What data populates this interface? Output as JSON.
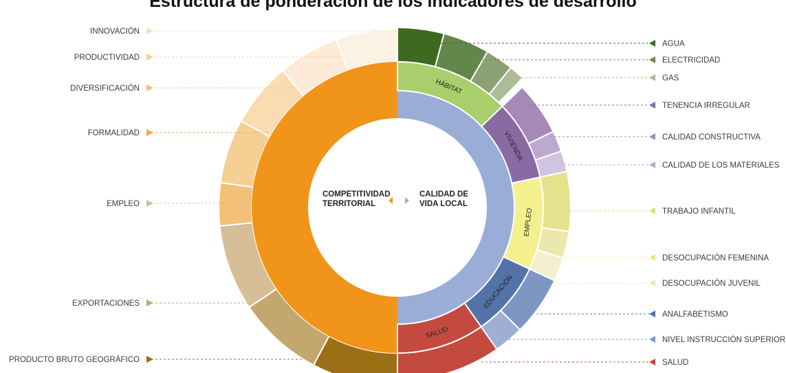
{
  "title": "Estructura de ponderación de los indicadores de desarrollo",
  "center_left": [
    "COMPETITIVIDAD",
    "TERRITORIAL"
  ],
  "center_right": [
    "CALIDAD DE",
    "VIDA LOCAL"
  ],
  "inner_groups": [
    {
      "name": "COMPETITIVIDAD TERRITORIAL",
      "label": "",
      "start": 180,
      "end": 360,
      "color": "#F0951A"
    },
    {
      "name": "HÁBITAT",
      "label": "HÁBITAT",
      "start": 0,
      "end": 46,
      "color": "#A9CF6D"
    },
    {
      "name": "VIVIENDA",
      "label": "VIVIENDA",
      "start": 46,
      "end": 78,
      "color": "#8A6AA3"
    },
    {
      "name": "EMPLEO",
      "label": "EMPLEO",
      "start": 78,
      "end": 115,
      "color": "#F5F08E"
    },
    {
      "name": "EDUCACIÓN",
      "label": "EDUCACIÓN",
      "start": 115,
      "end": 145,
      "color": "#5273A8"
    },
    {
      "name": "SALUD",
      "label": "SALUD",
      "start": 145,
      "end": 180,
      "color": "#C44A40"
    }
  ],
  "indicators_right": [
    {
      "label": "AGUA",
      "start": 0,
      "end": 15,
      "color": "#3E6A20"
    },
    {
      "label": "ELECTRICIDAD",
      "start": 15,
      "end": 30,
      "color": "#63864A"
    },
    {
      "label": "GAS",
      "start": 30,
      "end": 39,
      "color": "#8CA173"
    },
    {
      "label": "GAS",
      "start": 39,
      "end": 44,
      "color": "#ABBC97",
      "hidden_label": true
    },
    {
      "label": "TENENCIA IRREGULAR",
      "start": 46,
      "end": 64,
      "color": "#A58AB8"
    },
    {
      "label": "CALIDAD CONSTRUCTIVA",
      "start": 64,
      "end": 71,
      "color": "#BBA9CF"
    },
    {
      "label": "CALIDAD DE LOS MATERIALES",
      "start": 71,
      "end": 78,
      "color": "#D1C4E0"
    },
    {
      "label": "TRABAJO INFANTIL",
      "start": 78,
      "end": 98,
      "color": "#E6E18B"
    },
    {
      "label": "DESOCUPACIÓN FEMENINA",
      "start": 98,
      "end": 107,
      "color": "#ECE8AD"
    },
    {
      "label": "DESOCUPACIÓN JUVENIL",
      "start": 107,
      "end": 115,
      "color": "#F3F0CF"
    },
    {
      "label": "ANALFABETISMO",
      "start": 115,
      "end": 135,
      "color": "#7F96C3"
    },
    {
      "label": "NIVEL INSTRUCCIÓN SUPERIOR",
      "start": 135,
      "end": 145,
      "color": "#9DB0D3"
    },
    {
      "label": "SALUD",
      "start": 145,
      "end": 180,
      "color": "#C44A40"
    }
  ],
  "indicators_left": [
    {
      "label": "PRODUCTO BRUTO GEOGRÁFICO",
      "start": 180,
      "end": 208,
      "color": "#9C6F14"
    },
    {
      "label": "EXPORTACIONES",
      "start": 208,
      "end": 236,
      "color": "#C4A76E"
    },
    {
      "label": "EMPLEO",
      "start": 236,
      "end": 264,
      "color": "#D6BF97"
    },
    {
      "label": "FORMALIDAD",
      "start": 264,
      "end": 278,
      "color": "#F3C07A"
    },
    {
      "label": "DIVERSIFICACIÓN",
      "start": 278,
      "end": 299,
      "color": "#F5CF93"
    },
    {
      "label": "PRODUCTIVIDAD",
      "start": 299,
      "end": 320,
      "color": "#F9DDB1"
    },
    {
      "label": "INNOVACIÓN",
      "start": 320,
      "end": 340,
      "color": "#FBEBD8"
    },
    {
      "label": "",
      "start": 340,
      "end": 360,
      "color": "#FCF2E4",
      "hidden_label": true
    }
  ],
  "legend_right": [
    {
      "label": "AGUA",
      "color": "#3E6A20"
    },
    {
      "label": "ELECTRICIDAD",
      "color": "#63864A"
    },
    {
      "label": "GAS",
      "color": "#ABBC97"
    },
    {
      "label": "TENENCIA IRREGULAR",
      "color": "#8A6AA3"
    },
    {
      "label": "CALIDAD CONSTRUCTIVA",
      "color": "#A58AB8"
    },
    {
      "label": "CALIDAD DE LOS MATERIALES",
      "color": "#BBA9CF"
    },
    {
      "label": "TRABAJO INFANTIL",
      "color": "#E1DC7C"
    },
    {
      "label": "DESOCUPACIÓN FEMENINA",
      "color": "#EDE28A"
    },
    {
      "label": "DESOCUPACIÓN JUVENIL",
      "color": "#EDE6B7"
    },
    {
      "label": "ANALFABETISMO",
      "color": "#5273A8"
    },
    {
      "label": "NIVEL INSTRUCCIÓN SUPERIOR",
      "color": "#7F96C3"
    },
    {
      "label": "SALUD",
      "color": "#C44A40"
    }
  ],
  "legend_left": [
    {
      "label": "INNOVACIÓN",
      "color": "#F9DDB1"
    },
    {
      "label": "PRODUCTIVIDAD",
      "color": "#F5CF93"
    },
    {
      "label": "DIVERSIFICACIÓN",
      "color": "#F3C07A"
    },
    {
      "label": "FORMALIDAD",
      "color": "#F0A94C"
    },
    {
      "label": "EMPLEO",
      "color": "#D6BF97"
    },
    {
      "label": "EXPORTACIONES",
      "color": "#C4A76E"
    },
    {
      "label": "PRODUCTO BRUTO GEOGRÁFICO",
      "color": "#9C6F14"
    }
  ]
}
